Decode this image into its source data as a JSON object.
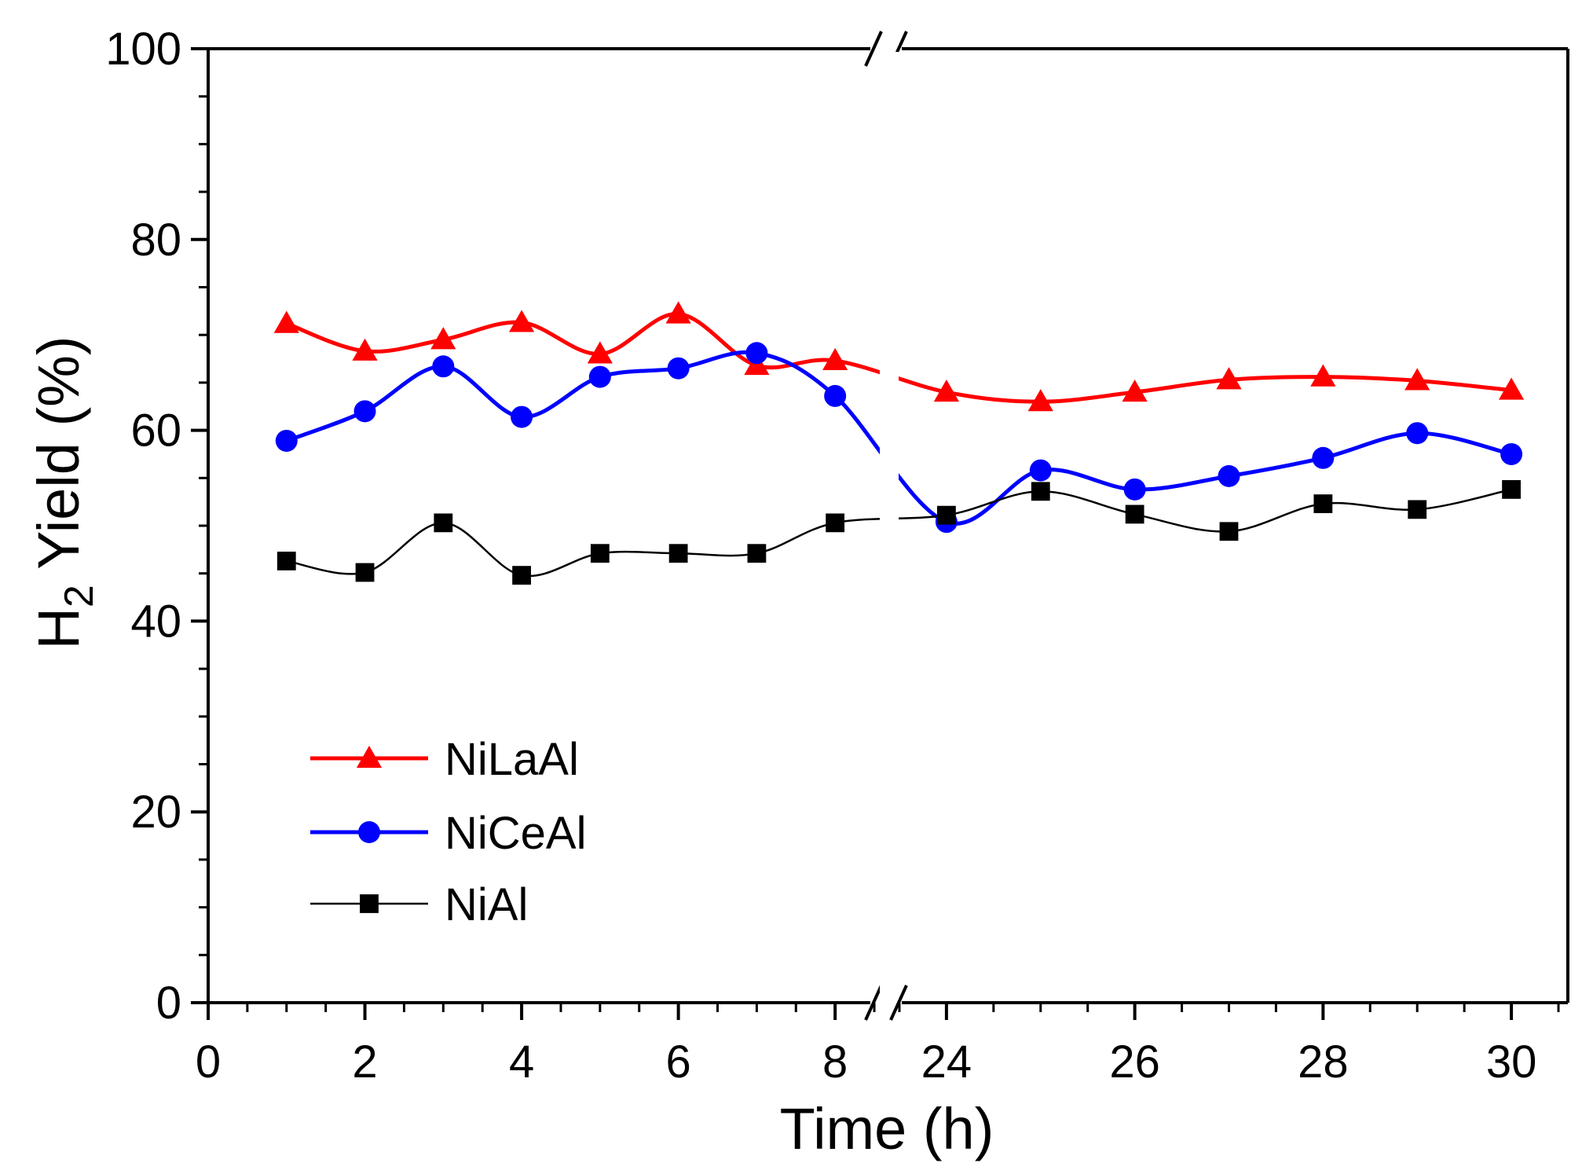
{
  "chart_data": {
    "type": "line",
    "xlabel": "Time (h)",
    "ylabel_main": "H",
    "ylabel_sub": "2",
    "ylabel_rest": " Yield (%)",
    "ylim": [
      0,
      100
    ],
    "yticks": [
      "0",
      "20",
      "40",
      "60",
      "80",
      "100"
    ],
    "xlim_left": [
      0,
      8.7
    ],
    "xlim_right": [
      23.4,
      30.6
    ],
    "xticks_left": [
      "0",
      "2",
      "4",
      "6",
      "8"
    ],
    "xticks_right": [
      "24",
      "26",
      "28",
      "30"
    ],
    "axis_break": true,
    "grid": false,
    "legend_position": "lower-left",
    "x": [
      1,
      2,
      3,
      4,
      5,
      6,
      7,
      8,
      24,
      25,
      26,
      27,
      28,
      29,
      30
    ],
    "series": [
      {
        "name": "NiLaAl",
        "color": "#ff0000",
        "marker": "triangle",
        "values": [
          71.2,
          68.3,
          69.5,
          71.3,
          68.0,
          72.2,
          66.8,
          67.3,
          64.0,
          63.0,
          64.0,
          65.3,
          65.6,
          65.2,
          64.2
        ]
      },
      {
        "name": "NiCeAl",
        "color": "#0000ff",
        "marker": "circle",
        "values": [
          58.9,
          62.0,
          66.7,
          61.4,
          65.6,
          66.5,
          68.1,
          63.6,
          50.4,
          55.8,
          53.8,
          55.2,
          57.1,
          59.7,
          57.5
        ]
      },
      {
        "name": "NiAl",
        "color": "#000000",
        "marker": "square",
        "values": [
          46.3,
          45.1,
          50.3,
          44.8,
          47.1,
          47.1,
          47.1,
          50.3,
          51.1,
          53.6,
          51.2,
          49.4,
          52.3,
          51.7,
          53.8
        ]
      }
    ]
  }
}
